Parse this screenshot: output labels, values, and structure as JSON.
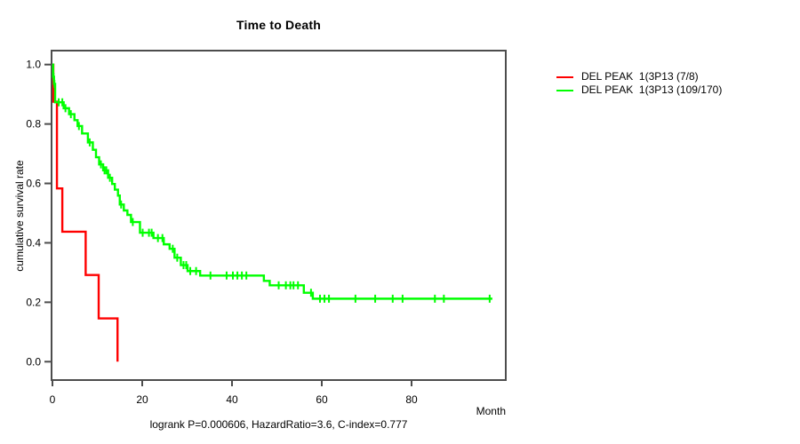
{
  "title": "Time to Death",
  "annotation": "logrank P=0.000606, HazardRatio=3.6, C-index=0.777",
  "x_axis": {
    "label": "Month",
    "ticks": [
      0,
      20,
      40,
      60,
      80
    ]
  },
  "y_axis": {
    "label": "cumulative survival rate",
    "ticks": [
      1.0,
      0.8,
      0.6,
      0.4,
      0.2,
      0.0
    ]
  },
  "chart_data": {
    "type": "line",
    "subtype": "kaplan-meier-step",
    "title": "Time to Death",
    "xlabel": "Month",
    "ylabel": "cumulative survival rate",
    "xlim": [
      0,
      101
    ],
    "ylim": [
      0.0,
      1.0
    ],
    "grid": false,
    "legend_position": "outside-right",
    "series": [
      {
        "name": "DEL PEAK  1(3P13 (7/8)",
        "color": "#ff0000",
        "start_survival": 1.0,
        "steps": [
          [
            0.2,
            0.875
          ],
          [
            1.0,
            0.583
          ],
          [
            2.2,
            0.4375
          ],
          [
            7.4,
            0.2917
          ],
          [
            10.3,
            0.1458
          ],
          [
            14.5,
            0.0
          ]
        ],
        "end_time": 14.5,
        "censor_times": []
      },
      {
        "name": "DEL PEAK  1(3P13 (109/170)",
        "color": "#00ff00",
        "start_survival": 1.0,
        "steps": [
          [
            0.15,
            0.959
          ],
          [
            0.35,
            0.935
          ],
          [
            0.6,
            0.873
          ],
          [
            2.5,
            0.853
          ],
          [
            3.7,
            0.833
          ],
          [
            4.9,
            0.813
          ],
          [
            5.6,
            0.793
          ],
          [
            6.6,
            0.768
          ],
          [
            7.9,
            0.738
          ],
          [
            9.0,
            0.713
          ],
          [
            9.7,
            0.688
          ],
          [
            10.4,
            0.664
          ],
          [
            11.3,
            0.644
          ],
          [
            12.4,
            0.619
          ],
          [
            13.3,
            0.598
          ],
          [
            13.9,
            0.579
          ],
          [
            14.6,
            0.559
          ],
          [
            15.0,
            0.529
          ],
          [
            15.9,
            0.509
          ],
          [
            16.7,
            0.494
          ],
          [
            17.5,
            0.47
          ],
          [
            19.5,
            0.434
          ],
          [
            22.5,
            0.416
          ],
          [
            24.8,
            0.395
          ],
          [
            26.1,
            0.38
          ],
          [
            27.2,
            0.35
          ],
          [
            28.6,
            0.325
          ],
          [
            30.1,
            0.305
          ],
          [
            32.9,
            0.29
          ],
          [
            47.1,
            0.272
          ],
          [
            48.4,
            0.257
          ],
          [
            56.0,
            0.232
          ],
          [
            58.0,
            0.212
          ]
        ],
        "end_time": 98,
        "censor_times": [
          0.25,
          0.45,
          1.4,
          2.2,
          2.9,
          4.1,
          5.9,
          8.3,
          10.8,
          11.6,
          12.0,
          12.8,
          15.3,
          17.9,
          20.1,
          21.5,
          22.1,
          23.5,
          24.5,
          26.8,
          27.8,
          29.2,
          29.8,
          30.7,
          32.0,
          35.2,
          38.8,
          40.2,
          41.2,
          42.2,
          43.2,
          50.4,
          52.0,
          53.0,
          53.7,
          54.7,
          57.6,
          59.6,
          60.6,
          61.6,
          67.5,
          71.9,
          75.8,
          78.0,
          85.2,
          87.2,
          97.4
        ]
      }
    ]
  }
}
